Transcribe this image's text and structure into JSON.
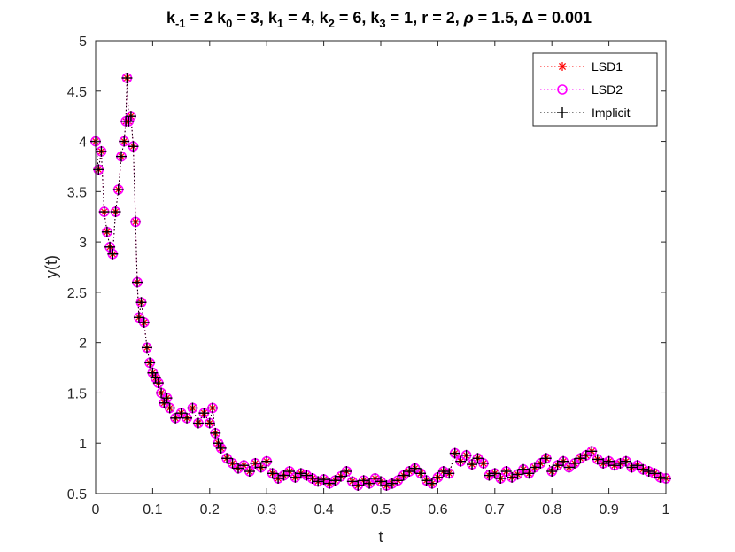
{
  "chart_data": {
    "type": "line",
    "title": {
      "k_m1": "2",
      "k_0": "3",
      "k_1": "4",
      "k_2": "6",
      "k_3": "1",
      "r": "2",
      "rho": "1.5",
      "delta": "0.001"
    },
    "xlabel": "t",
    "ylabel": "y(t)",
    "xlim": [
      0,
      1
    ],
    "ylim": [
      0.5,
      5
    ],
    "xticks": [
      0,
      0.1,
      0.2,
      0.3,
      0.4,
      0.5,
      0.6,
      0.7,
      0.8,
      0.9,
      1
    ],
    "xtick_labels": [
      "0",
      "0.1",
      "0.2",
      "0.3",
      "0.4",
      "0.5",
      "0.6",
      "0.7",
      "0.8",
      "0.9",
      "1"
    ],
    "yticks": [
      0.5,
      1,
      1.5,
      2,
      2.5,
      3,
      3.5,
      4,
      4.5,
      5
    ],
    "ytick_labels": [
      "0.5",
      "1",
      "1.5",
      "2",
      "2.5",
      "3",
      "3.5",
      "4",
      "4.5",
      "5"
    ],
    "grid": false,
    "legend_position": "top-right",
    "x": [
      0.0,
      0.005,
      0.01,
      0.015,
      0.02,
      0.025,
      0.03,
      0.035,
      0.04,
      0.045,
      0.05,
      0.053,
      0.055,
      0.058,
      0.062,
      0.066,
      0.07,
      0.073,
      0.076,
      0.08,
      0.085,
      0.09,
      0.095,
      0.1,
      0.105,
      0.11,
      0.115,
      0.12,
      0.125,
      0.13,
      0.14,
      0.15,
      0.16,
      0.17,
      0.18,
      0.19,
      0.2,
      0.205,
      0.21,
      0.215,
      0.22,
      0.23,
      0.24,
      0.25,
      0.26,
      0.27,
      0.28,
      0.29,
      0.3,
      0.31,
      0.32,
      0.33,
      0.34,
      0.35,
      0.36,
      0.37,
      0.38,
      0.39,
      0.4,
      0.41,
      0.42,
      0.43,
      0.44,
      0.45,
      0.46,
      0.47,
      0.48,
      0.49,
      0.5,
      0.51,
      0.52,
      0.53,
      0.54,
      0.55,
      0.56,
      0.57,
      0.58,
      0.59,
      0.6,
      0.61,
      0.62,
      0.63,
      0.64,
      0.65,
      0.66,
      0.67,
      0.68,
      0.69,
      0.7,
      0.71,
      0.72,
      0.73,
      0.74,
      0.75,
      0.76,
      0.77,
      0.78,
      0.79,
      0.8,
      0.81,
      0.82,
      0.83,
      0.84,
      0.85,
      0.86,
      0.87,
      0.88,
      0.89,
      0.9,
      0.91,
      0.92,
      0.93,
      0.94,
      0.95,
      0.96,
      0.97,
      0.98,
      0.99,
      1.0
    ],
    "series": [
      {
        "name": "LSD1",
        "color": "#ff0000",
        "marker": "asterisk",
        "values": [
          4.0,
          3.72,
          3.9,
          3.3,
          3.1,
          2.95,
          2.88,
          3.3,
          3.52,
          3.85,
          4.0,
          4.2,
          4.63,
          4.2,
          4.25,
          3.95,
          3.2,
          2.6,
          2.25,
          2.4,
          2.2,
          1.95,
          1.8,
          1.7,
          1.65,
          1.6,
          1.5,
          1.4,
          1.45,
          1.35,
          1.25,
          1.3,
          1.25,
          1.35,
          1.2,
          1.3,
          1.2,
          1.35,
          1.1,
          1.0,
          0.95,
          0.85,
          0.8,
          0.75,
          0.78,
          0.72,
          0.8,
          0.76,
          0.82,
          0.7,
          0.65,
          0.68,
          0.72,
          0.66,
          0.7,
          0.68,
          0.65,
          0.62,
          0.64,
          0.6,
          0.63,
          0.67,
          0.72,
          0.62,
          0.58,
          0.63,
          0.6,
          0.65,
          0.62,
          0.58,
          0.6,
          0.63,
          0.68,
          0.72,
          0.75,
          0.7,
          0.63,
          0.6,
          0.66,
          0.72,
          0.7,
          0.9,
          0.82,
          0.88,
          0.79,
          0.85,
          0.8,
          0.68,
          0.7,
          0.65,
          0.72,
          0.66,
          0.69,
          0.74,
          0.7,
          0.76,
          0.8,
          0.85,
          0.72,
          0.78,
          0.82,
          0.76,
          0.8,
          0.85,
          0.88,
          0.92,
          0.84,
          0.8,
          0.82,
          0.78,
          0.8,
          0.82,
          0.76,
          0.78,
          0.74,
          0.72,
          0.7,
          0.66,
          0.65
        ]
      },
      {
        "name": "LSD2",
        "color": "#ff00ff",
        "marker": "circle",
        "values": [
          4.0,
          3.72,
          3.9,
          3.3,
          3.1,
          2.95,
          2.88,
          3.3,
          3.52,
          3.85,
          4.0,
          4.2,
          4.63,
          4.2,
          4.25,
          3.95,
          3.2,
          2.6,
          2.25,
          2.4,
          2.2,
          1.95,
          1.8,
          1.7,
          1.65,
          1.6,
          1.5,
          1.4,
          1.45,
          1.35,
          1.25,
          1.3,
          1.25,
          1.35,
          1.2,
          1.3,
          1.2,
          1.35,
          1.1,
          1.0,
          0.95,
          0.85,
          0.8,
          0.75,
          0.78,
          0.72,
          0.8,
          0.76,
          0.82,
          0.7,
          0.65,
          0.68,
          0.72,
          0.66,
          0.7,
          0.68,
          0.65,
          0.62,
          0.64,
          0.6,
          0.63,
          0.67,
          0.72,
          0.62,
          0.58,
          0.63,
          0.6,
          0.65,
          0.62,
          0.58,
          0.6,
          0.63,
          0.68,
          0.72,
          0.75,
          0.7,
          0.63,
          0.6,
          0.66,
          0.72,
          0.7,
          0.9,
          0.82,
          0.88,
          0.79,
          0.85,
          0.8,
          0.68,
          0.7,
          0.65,
          0.72,
          0.66,
          0.69,
          0.74,
          0.7,
          0.76,
          0.8,
          0.85,
          0.72,
          0.78,
          0.82,
          0.76,
          0.8,
          0.85,
          0.88,
          0.92,
          0.84,
          0.8,
          0.82,
          0.78,
          0.8,
          0.82,
          0.76,
          0.78,
          0.74,
          0.72,
          0.7,
          0.66,
          0.65
        ]
      },
      {
        "name": "Implicit",
        "color": "#000000",
        "marker": "plus",
        "values": [
          4.0,
          3.72,
          3.9,
          3.3,
          3.1,
          2.95,
          2.88,
          3.3,
          3.52,
          3.85,
          4.0,
          4.2,
          4.63,
          4.2,
          4.25,
          3.95,
          3.2,
          2.6,
          2.25,
          2.4,
          2.2,
          1.95,
          1.8,
          1.7,
          1.65,
          1.6,
          1.5,
          1.4,
          1.45,
          1.35,
          1.25,
          1.3,
          1.25,
          1.35,
          1.2,
          1.3,
          1.2,
          1.35,
          1.1,
          1.0,
          0.95,
          0.85,
          0.8,
          0.75,
          0.78,
          0.72,
          0.8,
          0.76,
          0.82,
          0.7,
          0.65,
          0.68,
          0.72,
          0.66,
          0.7,
          0.68,
          0.65,
          0.62,
          0.64,
          0.6,
          0.63,
          0.67,
          0.72,
          0.62,
          0.58,
          0.63,
          0.6,
          0.65,
          0.62,
          0.58,
          0.6,
          0.63,
          0.68,
          0.72,
          0.75,
          0.7,
          0.63,
          0.6,
          0.66,
          0.72,
          0.7,
          0.9,
          0.82,
          0.88,
          0.79,
          0.85,
          0.8,
          0.68,
          0.7,
          0.65,
          0.72,
          0.66,
          0.69,
          0.74,
          0.7,
          0.76,
          0.8,
          0.85,
          0.72,
          0.78,
          0.82,
          0.76,
          0.8,
          0.85,
          0.88,
          0.92,
          0.84,
          0.8,
          0.82,
          0.78,
          0.8,
          0.82,
          0.76,
          0.78,
          0.74,
          0.72,
          0.7,
          0.66,
          0.65
        ]
      }
    ]
  }
}
